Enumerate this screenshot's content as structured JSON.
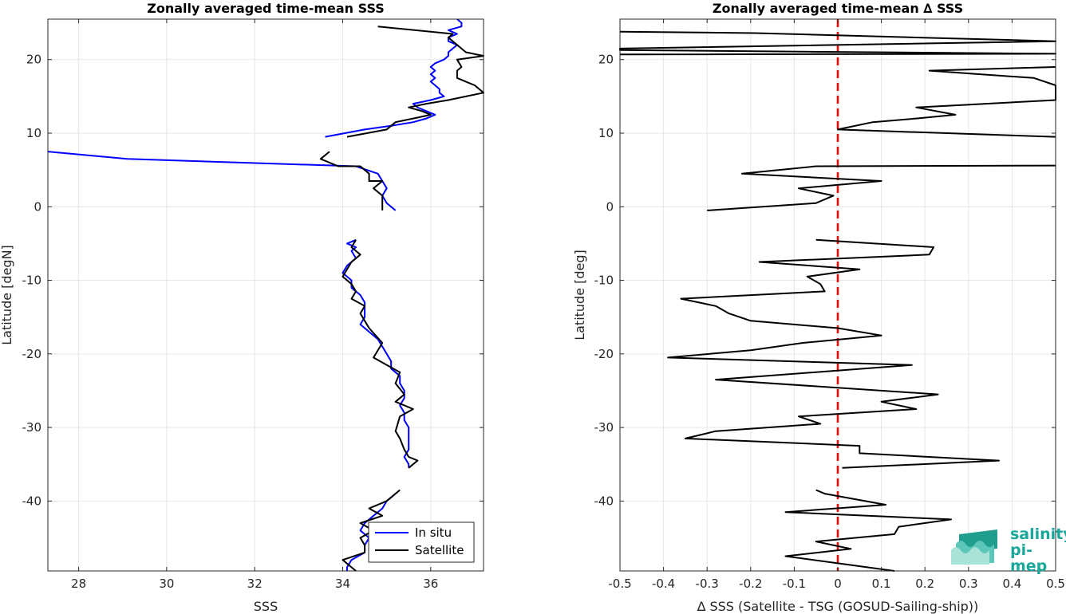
{
  "chart_data": [
    {
      "type": "line",
      "title": "Zonally averaged time-mean SSS",
      "xlabel": "SSS",
      "ylabel": "Latitude [degN]",
      "xlim": [
        27.3,
        37.2
      ],
      "ylim": [
        -49.5,
        25.5
      ],
      "xticks": [
        28,
        30,
        32,
        34,
        36
      ],
      "yticks": [
        -40,
        -30,
        -20,
        -10,
        0,
        10,
        20
      ],
      "grid": true,
      "legend": {
        "position": "bottom-right",
        "entries": [
          "In situ",
          "Satellite"
        ]
      },
      "series": [
        {
          "name": "In situ",
          "color": "#0000ff",
          "segments": [
            [
              [
                36.6,
                25.5
              ],
              [
                36.7,
                25
              ],
              [
                36.7,
                24.5
              ],
              [
                36.4,
                24
              ],
              [
                36.6,
                23.5
              ],
              [
                36.4,
                23
              ],
              [
                36.4,
                22.5
              ],
              [
                36.6,
                22
              ],
              [
                36.5,
                21.5
              ],
              [
                36.4,
                21
              ],
              [
                36.4,
                20.5
              ],
              [
                36.3,
                20
              ],
              [
                36.1,
                19.5
              ],
              [
                36.0,
                19
              ],
              [
                36.1,
                18.5
              ],
              [
                36.0,
                18
              ],
              [
                36.1,
                17.5
              ],
              [
                36.0,
                17
              ],
              [
                36.1,
                16.5
              ],
              [
                36.2,
                16
              ],
              [
                36.2,
                15.5
              ],
              [
                36.3,
                15
              ],
              [
                36.0,
                14.5
              ],
              [
                35.6,
                14
              ],
              [
                35.7,
                13.5
              ],
              [
                35.9,
                13
              ],
              [
                36.1,
                12.5
              ],
              [
                35.9,
                12
              ],
              [
                35.6,
                11.5
              ],
              [
                35.1,
                11
              ],
              [
                34.5,
                10.5
              ],
              [
                33.6,
                9.5
              ]
            ],
            [
              [
                27.3,
                7.5
              ],
              [
                29.1,
                6.5
              ],
              [
                34.3,
                5.5
              ],
              [
                34.8,
                4.5
              ],
              [
                34.9,
                3.5
              ],
              [
                35.0,
                2.5
              ],
              [
                34.9,
                1.5
              ],
              [
                35.0,
                0.5
              ],
              [
                35.2,
                -0.5
              ]
            ],
            [
              [
                34.3,
                -4.5
              ],
              [
                34.1,
                -5
              ],
              [
                34.3,
                -5.5
              ],
              [
                34.2,
                -6
              ],
              [
                34.3,
                -7
              ],
              [
                34.1,
                -8
              ],
              [
                34.0,
                -9
              ],
              [
                34.2,
                -10
              ],
              [
                34.2,
                -11
              ],
              [
                34.4,
                -12
              ],
              [
                34.5,
                -13
              ],
              [
                34.5,
                -14
              ],
              [
                34.5,
                -15
              ],
              [
                34.4,
                -16
              ],
              [
                34.6,
                -17
              ],
              [
                34.8,
                -18
              ],
              [
                34.9,
                -19
              ],
              [
                35.0,
                -20
              ],
              [
                35.1,
                -21
              ],
              [
                35.1,
                -22
              ],
              [
                35.3,
                -23
              ],
              [
                35.3,
                -24
              ],
              [
                35.4,
                -25
              ],
              [
                35.4,
                -26
              ],
              [
                35.3,
                -27
              ],
              [
                35.4,
                -28
              ],
              [
                35.4,
                -29
              ],
              [
                35.5,
                -30
              ],
              [
                35.5,
                -31
              ],
              [
                35.5,
                -32
              ],
              [
                35.5,
                -33
              ],
              [
                35.4,
                -34
              ],
              [
                35.5,
                -35
              ],
              [
                35.5,
                -35.5
              ]
            ],
            [
              [
                35.2,
                -39
              ],
              [
                35.0,
                -40
              ],
              [
                34.9,
                -41
              ],
              [
                34.7,
                -42
              ],
              [
                34.5,
                -43
              ],
              [
                34.4,
                -44
              ],
              [
                34.6,
                -45
              ],
              [
                34.5,
                -46
              ],
              [
                34.5,
                -47
              ],
              [
                34.2,
                -48
              ],
              [
                34.1,
                -49
              ],
              [
                34.1,
                -49.5
              ]
            ]
          ]
        },
        {
          "name": "Satellite",
          "color": "#000000",
          "segments": [
            [
              [
                34.8,
                24.5
              ],
              [
                36.5,
                23.5
              ],
              [
                36.4,
                23
              ],
              [
                36.5,
                22.5
              ],
              [
                36.6,
                22
              ],
              [
                36.8,
                21
              ],
              [
                37.2,
                20.5
              ],
              [
                36.6,
                20
              ],
              [
                36.7,
                19
              ],
              [
                36.6,
                18.5
              ],
              [
                36.6,
                17.5
              ],
              [
                36.8,
                17
              ],
              [
                37.0,
                16.5
              ],
              [
                37.2,
                15.5
              ],
              [
                36.8,
                15
              ],
              [
                36.4,
                14.5
              ],
              [
                35.9,
                14
              ],
              [
                35.5,
                13.5
              ],
              [
                35.8,
                13
              ],
              [
                36.0,
                12.5
              ],
              [
                35.6,
                12
              ],
              [
                35.2,
                11.5
              ],
              [
                35.0,
                10.5
              ],
              [
                34.1,
                9.5
              ]
            ],
            [
              [
                33.7,
                7.5
              ],
              [
                33.5,
                6.5
              ],
              [
                33.9,
                5.5
              ],
              [
                34.4,
                5.5
              ],
              [
                34.6,
                4.5
              ],
              [
                34.6,
                3.5
              ],
              [
                34.9,
                3.5
              ],
              [
                34.7,
                2.5
              ],
              [
                34.9,
                1.5
              ],
              [
                34.9,
                0.5
              ],
              [
                34.9,
                -0.5
              ]
            ],
            [
              [
                34.3,
                -4.5
              ],
              [
                34.2,
                -5.5
              ],
              [
                34.4,
                -6.5
              ],
              [
                34.2,
                -7.5
              ],
              [
                34.0,
                -9.5
              ],
              [
                34.2,
                -10.5
              ],
              [
                34.3,
                -11.5
              ],
              [
                34.2,
                -12.5
              ],
              [
                34.5,
                -13.5
              ],
              [
                34.4,
                -14.5
              ],
              [
                34.5,
                -15.5
              ],
              [
                34.6,
                -16.5
              ],
              [
                34.9,
                -18.5
              ],
              [
                34.7,
                -20.5
              ],
              [
                35.0,
                -21.5
              ],
              [
                35.3,
                -22.5
              ],
              [
                35.2,
                -24
              ],
              [
                35.4,
                -25.5
              ],
              [
                35.2,
                -26.5
              ],
              [
                35.6,
                -27.5
              ],
              [
                35.3,
                -28.5
              ],
              [
                35.2,
                -30.5
              ],
              [
                35.3,
                -31.5
              ],
              [
                35.4,
                -33
              ],
              [
                35.5,
                -34
              ],
              [
                35.7,
                -34.5
              ],
              [
                35.5,
                -35.5
              ]
            ],
            [
              [
                35.3,
                -38.5
              ],
              [
                35.0,
                -40
              ],
              [
                34.6,
                -41
              ],
              [
                34.9,
                -42
              ],
              [
                34.4,
                -43
              ],
              [
                34.7,
                -44
              ],
              [
                34.4,
                -45
              ],
              [
                34.5,
                -46
              ],
              [
                34.5,
                -47
              ],
              [
                34.0,
                -48
              ],
              [
                34.2,
                -49
              ],
              [
                34.3,
                -49.5
              ]
            ]
          ]
        }
      ]
    },
    {
      "type": "line",
      "title": "Zonally averaged time-mean ∆ SSS",
      "xlabel": "∆ SSS (Satellite - TSG (GOSUD-Sailing-ship))",
      "ylabel": "Latitude [deg]",
      "xlim": [
        -0.5,
        0.5
      ],
      "ylim": [
        -49.5,
        25.5
      ],
      "xticks": [
        -0.5,
        -0.4,
        -0.3,
        -0.2,
        -0.1,
        0,
        0.1,
        0.2,
        0.3,
        0.4,
        0.5
      ],
      "xtick_labels": [
        "-0.5",
        "-0.4",
        "-0.3",
        "-0.2",
        "-0.1",
        "0",
        "0.1",
        "0.2",
        "0.3",
        "0.4",
        "0.5"
      ],
      "yticks": [
        -40,
        -30,
        -20,
        -10,
        0,
        10,
        20
      ],
      "grid": true,
      "reference_line": {
        "x": 0,
        "color": "#ff0000",
        "style": "dashed"
      },
      "series": [
        {
          "name": "",
          "color": "#000000",
          "segments": [
            [
              [
                -0.5,
                23.8
              ],
              [
                -0.19,
                23.6
              ],
              [
                0.5,
                22.5
              ],
              [
                -0.5,
                21.5
              ],
              [
                -0.5,
                21.3
              ],
              [
                0.5,
                20.8
              ],
              [
                -0.5,
                20.7
              ]
            ],
            [
              [
                0.5,
                19
              ],
              [
                0.21,
                18.5
              ],
              [
                0.45,
                17.5
              ],
              [
                0.5,
                16.5
              ],
              [
                0.5,
                15.5
              ],
              [
                0.5,
                14.5
              ],
              [
                0.18,
                13.5
              ],
              [
                0.27,
                12.5
              ],
              [
                0.18,
                12
              ],
              [
                0.08,
                11.5
              ],
              [
                0,
                10.5
              ],
              [
                0.5,
                9.5
              ]
            ],
            [
              [
                0.5,
                5.6
              ],
              [
                -0.05,
                5.5
              ],
              [
                -0.22,
                4.5
              ],
              [
                0.1,
                3.5
              ],
              [
                -0.09,
                2.5
              ],
              [
                -0.01,
                1.5
              ],
              [
                -0.05,
                0.5
              ],
              [
                -0.3,
                -0.5
              ]
            ],
            [
              [
                -0.05,
                -4.5
              ],
              [
                0.22,
                -5.5
              ],
              [
                0.21,
                -6.5
              ],
              [
                -0.18,
                -7.5
              ],
              [
                0.05,
                -8.5
              ],
              [
                -0.07,
                -9.5
              ],
              [
                -0.04,
                -10.5
              ],
              [
                -0.03,
                -11.5
              ],
              [
                -0.36,
                -12.5
              ],
              [
                -0.28,
                -13.5
              ],
              [
                -0.25,
                -14.5
              ],
              [
                -0.2,
                -15.5
              ],
              [
                0,
                -16.5
              ],
              [
                0.1,
                -17.5
              ],
              [
                -0.08,
                -18.5
              ],
              [
                -0.2,
                -19.5
              ],
              [
                -0.39,
                -20.5
              ],
              [
                0.17,
                -21.5
              ],
              [
                -0.28,
                -23.5
              ],
              [
                0.23,
                -25.5
              ],
              [
                0.1,
                -26.5
              ],
              [
                0.18,
                -27.5
              ],
              [
                -0.09,
                -28.5
              ],
              [
                -0.04,
                -29.5
              ],
              [
                -0.28,
                -30.5
              ],
              [
                -0.35,
                -31.5
              ],
              [
                0.05,
                -32.5
              ],
              [
                0.05,
                -33.5
              ],
              [
                0.37,
                -34.5
              ],
              [
                0.01,
                -35.5
              ]
            ],
            [
              [
                -0.05,
                -38.5
              ],
              [
                -0.03,
                -39
              ],
              [
                0.11,
                -40.5
              ],
              [
                -0.12,
                -41.5
              ],
              [
                0.26,
                -42.5
              ],
              [
                0.14,
                -43.5
              ],
              [
                0.13,
                -44.5
              ],
              [
                -0.05,
                -45.5
              ],
              [
                0.03,
                -46.5
              ],
              [
                -0.12,
                -47.5
              ],
              [
                0.13,
                -49.5
              ]
            ]
          ]
        }
      ]
    }
  ],
  "legend_items": [
    "In situ",
    "Satellite"
  ],
  "legend_colors": [
    "#0000ff",
    "#000000"
  ],
  "logo": {
    "line1": "salinity",
    "line2": "pi-mep"
  }
}
